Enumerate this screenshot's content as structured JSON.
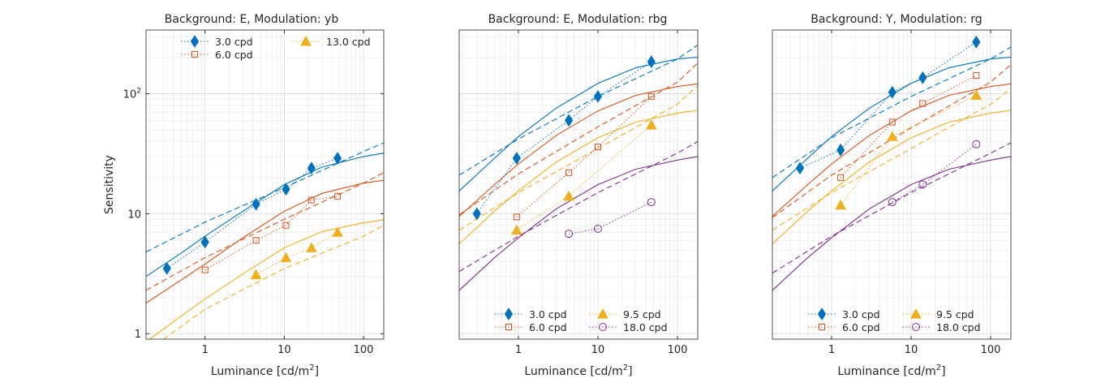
{
  "colors": {
    "series": [
      "#0072BD",
      "#D95319",
      "#EDB120",
      "#7E2F8E"
    ],
    "grid_major": "#d9d9d9",
    "grid_minor": "#ececec",
    "axes": "#262626"
  },
  "chart_data": [
    {
      "type": "line",
      "title": "Background: E, Modulation: yb",
      "xlabel": "Luminance [cd/m²]",
      "ylabel": "Sensitivity",
      "xscale": "log",
      "yscale": "log",
      "xlim": [
        0.18,
        180
      ],
      "ylim": [
        0.9,
        340
      ],
      "xticks": [
        1,
        10,
        100
      ],
      "xtick_labels": [
        "1",
        "10",
        "100"
      ],
      "yticks": [
        1,
        10,
        100
      ],
      "ytick_labels": [
        "1",
        "10",
        "10²"
      ],
      "grid": true,
      "legend_position": "top",
      "legend_columns": [
        [
          "3.0 cpd",
          "6.0 cpd"
        ],
        [
          "13.0 cpd"
        ]
      ],
      "series": [
        {
          "name": "3.0 cpd",
          "marker": "diamond",
          "color_index": 0,
          "x": [
            0.33,
            1.0,
            4.4,
            10.5,
            22,
            47
          ],
          "y": [
            3.5,
            5.8,
            12,
            16,
            24,
            29
          ]
        },
        {
          "name": "6.0 cpd",
          "marker": "square",
          "color_index": 1,
          "x": [
            1.0,
            4.4,
            10.5,
            22,
            47
          ],
          "y": [
            3.4,
            6.0,
            8.0,
            13,
            14
          ]
        },
        {
          "name": "13.0 cpd",
          "marker": "triangle",
          "color_index": 2,
          "x": [
            4.4,
            10.5,
            22,
            47
          ],
          "y": [
            3.1,
            4.3,
            5.2,
            7.0
          ]
        }
      ],
      "fit_curves": [
        {
          "color_index": 0,
          "solid": {
            "x": [
              0.18,
              0.5,
              1,
              3,
              10,
              30,
              100,
              180
            ],
            "y": [
              3.0,
              4.7,
              6.5,
              10.5,
              17.5,
              24.5,
              30,
              32
            ]
          },
          "dashed": {
            "x": [
              0.18,
              1,
              10,
              100,
              180
            ],
            "y": [
              4.8,
              8.5,
              16.5,
              33,
              39
            ]
          }
        },
        {
          "color_index": 1,
          "solid": {
            "x": [
              0.18,
              0.5,
              1,
              3,
              10,
              30,
              100,
              180
            ],
            "y": [
              1.8,
              2.8,
              3.8,
              6.3,
              10.5,
              14.8,
              18,
              19
            ]
          },
          "dashed": {
            "x": [
              0.18,
              1,
              10,
              100,
              180
            ],
            "y": [
              2.3,
              4.3,
              9,
              18,
              22
            ]
          }
        },
        {
          "color_index": 2,
          "solid": {
            "x": [
              0.2,
              0.5,
              1,
              3,
              10,
              30,
              100,
              180
            ],
            "y": [
              0.9,
              1.4,
              1.95,
              3.15,
              5.2,
              7.1,
              8.4,
              8.9
            ]
          },
          "dashed": {
            "x": [
              0.3,
              1,
              10,
              100,
              180
            ],
            "y": [
              0.9,
              1.6,
              3.5,
              6.5,
              8.0
            ]
          }
        }
      ]
    },
    {
      "type": "line",
      "title": "Background: E, Modulation: rbg",
      "xlabel": "Luminance [cd/m²]",
      "ylabel": "",
      "xscale": "log",
      "yscale": "log",
      "xlim": [
        0.18,
        180
      ],
      "ylim": [
        0.9,
        340
      ],
      "xticks": [
        1,
        10,
        100
      ],
      "xtick_labels": [
        "1",
        "10",
        "100"
      ],
      "yticks": [],
      "ytick_labels": [],
      "grid": true,
      "legend_position": "bottom",
      "legend_columns": [
        [
          "3.0 cpd",
          "6.0 cpd"
        ],
        [
          "9.5 cpd",
          "18.0 cpd"
        ]
      ],
      "series": [
        {
          "name": "3.0 cpd",
          "marker": "diamond",
          "color_index": 0,
          "x": [
            0.3,
            0.95,
            4.3,
            10,
            47
          ],
          "y": [
            10,
            29,
            60,
            95,
            185
          ]
        },
        {
          "name": "6.0 cpd",
          "marker": "square",
          "color_index": 1,
          "x": [
            0.95,
            4.3,
            10,
            47
          ],
          "y": [
            9.4,
            22,
            36,
            95
          ]
        },
        {
          "name": "9.5 cpd",
          "marker": "triangle",
          "color_index": 2,
          "x": [
            0.95,
            4.3,
            47
          ],
          "y": [
            7.3,
            14,
            55
          ]
        },
        {
          "name": "18.0 cpd",
          "marker": "circle",
          "color_index": 3,
          "x": [
            4.3,
            10,
            47
          ],
          "y": [
            6.8,
            7.5,
            12.5
          ]
        }
      ],
      "fit_curves": [
        {
          "color_index": 0,
          "solid": {
            "x": [
              0.18,
              0.5,
              1,
              3,
              10,
              30,
              100,
              180
            ],
            "y": [
              15.5,
              29,
              44,
              76,
              122,
              165,
              195,
              202
            ]
          },
          "dashed": {
            "x": [
              0.18,
              1,
              10,
              100,
              180
            ],
            "y": [
              21,
              42,
              95,
              195,
              255
            ]
          }
        },
        {
          "color_index": 1,
          "solid": {
            "x": [
              0.18,
              0.5,
              1,
              3,
              10,
              30,
              100,
              180
            ],
            "y": [
              9.5,
              17.5,
              26,
              45,
              72,
              97,
              115,
              121
            ]
          },
          "dashed": {
            "x": [
              0.18,
              1,
              10,
              100,
              180
            ],
            "y": [
              9.8,
              21.5,
              53,
              125,
              180
            ]
          }
        },
        {
          "color_index": 2,
          "solid": {
            "x": [
              0.18,
              0.5,
              1,
              3,
              10,
              30,
              100,
              180
            ],
            "y": [
              5.6,
              10.5,
              15.5,
              27,
              43,
              58,
              69,
              73
            ]
          },
          "dashed": {
            "x": [
              0.18,
              1,
              10,
              100,
              180
            ],
            "y": [
              7.3,
              15,
              35,
              82,
              117
            ]
          }
        },
        {
          "color_index": 3,
          "solid": {
            "x": [
              0.18,
              0.5,
              1,
              3,
              10,
              30,
              100,
              180
            ],
            "y": [
              2.3,
              4.3,
              6.3,
              11,
              17.5,
              23.5,
              28,
              30
            ]
          },
          "dashed": {
            "x": [
              0.18,
              1,
              10,
              100,
              180
            ],
            "y": [
              3.3,
              6.5,
              15,
              32,
              40
            ]
          }
        }
      ]
    },
    {
      "type": "line",
      "title": "Background: Y, Modulation: rg",
      "xlabel": "Luminance [cd/m²]",
      "ylabel": "",
      "xscale": "log",
      "yscale": "log",
      "xlim": [
        0.18,
        180
      ],
      "ylim": [
        0.9,
        340
      ],
      "xticks": [
        1,
        10,
        100
      ],
      "xtick_labels": [
        "1",
        "10",
        "100"
      ],
      "yticks": [],
      "ytick_labels": [],
      "grid": true,
      "legend_position": "bottom",
      "legend_columns": [
        [
          "3.0 cpd",
          "6.0 cpd"
        ],
        [
          "9.5 cpd",
          "18.0 cpd"
        ]
      ],
      "series": [
        {
          "name": "3.0 cpd",
          "marker": "diamond",
          "color_index": 0,
          "x": [
            0.4,
            1.3,
            5.8,
            14,
            66
          ],
          "y": [
            24,
            34,
            103,
            136,
            270
          ]
        },
        {
          "name": "6.0 cpd",
          "marker": "square",
          "color_index": 1,
          "x": [
            1.3,
            5.8,
            14,
            66
          ],
          "y": [
            20,
            58,
            83,
            142
          ]
        },
        {
          "name": "9.5 cpd",
          "marker": "triangle",
          "color_index": 2,
          "x": [
            1.3,
            5.8,
            66
          ],
          "y": [
            11.8,
            44,
            97
          ]
        },
        {
          "name": "18.0 cpd",
          "marker": "circle",
          "color_index": 3,
          "x": [
            5.8,
            14,
            66
          ],
          "y": [
            12.5,
            17.5,
            38
          ]
        }
      ],
      "fit_curves": [
        {
          "color_index": 0,
          "solid": {
            "x": [
              0.18,
              0.5,
              1,
              3,
              10,
              30,
              100,
              180
            ],
            "y": [
              15.5,
              29,
              44,
              76,
              122,
              165,
              195,
              202
            ]
          },
          "dashed": {
            "x": [
              0.18,
              1,
              10,
              100,
              180
            ],
            "y": [
              20,
              43,
              95,
              195,
              245
            ]
          }
        },
        {
          "color_index": 1,
          "solid": {
            "x": [
              0.18,
              0.5,
              1,
              3,
              10,
              30,
              100,
              180
            ],
            "y": [
              9.5,
              17.5,
              26,
              45,
              72,
              97,
              115,
              121
            ]
          },
          "dashed": {
            "x": [
              0.18,
              1,
              10,
              100,
              180
            ],
            "y": [
              9.3,
              21,
              52,
              125,
              175
            ]
          }
        },
        {
          "color_index": 2,
          "solid": {
            "x": [
              0.18,
              0.5,
              1,
              3,
              10,
              30,
              100,
              180
            ],
            "y": [
              5.6,
              10.5,
              15.5,
              27,
              43,
              58,
              69,
              73
            ]
          },
          "dashed": {
            "x": [
              0.18,
              1,
              10,
              100,
              180
            ],
            "y": [
              7.3,
              15,
              35,
              82,
              110
            ]
          }
        },
        {
          "color_index": 3,
          "solid": {
            "x": [
              0.18,
              0.5,
              1,
              3,
              10,
              30,
              100,
              180
            ],
            "y": [
              2.3,
              4.3,
              6.3,
              11,
              17.5,
              23.5,
              28,
              30
            ]
          },
          "dashed": {
            "x": [
              0.18,
              1,
              10,
              100,
              180
            ],
            "y": [
              3.2,
              6.5,
              15,
              32,
              39
            ]
          }
        }
      ]
    }
  ]
}
